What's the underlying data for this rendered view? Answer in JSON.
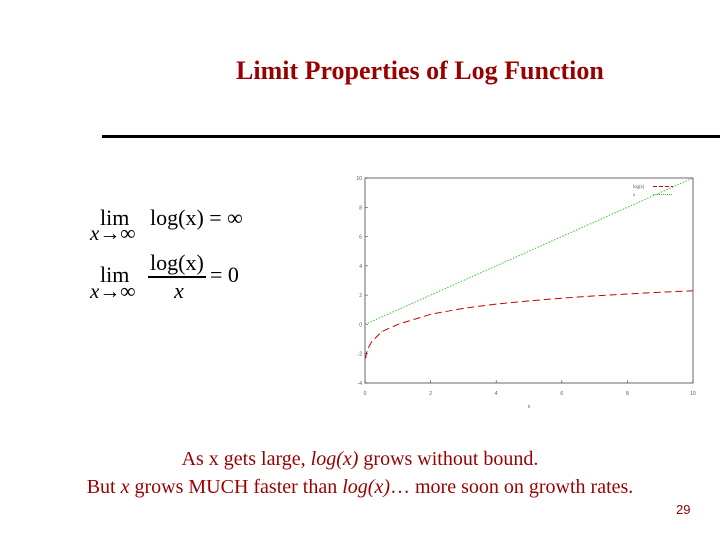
{
  "slide": {
    "title": "Limit Properties of Log Function",
    "page_number": "29"
  },
  "math": {
    "limit1": {
      "lim": "lim",
      "subscript": "x→∞",
      "expression": "log(x) = ∞"
    },
    "limit2": {
      "lim": "lim",
      "subscript": "x→∞",
      "numerator": "log(x)",
      "denominator": "x",
      "result": "= 0"
    }
  },
  "caption": {
    "line1": {
      "part1": "As x gets large, ",
      "part2": "log(x)",
      "part3": " grows without bound."
    },
    "line2": {
      "part1": "But ",
      "part2": "x",
      "part3": " grows MUCH faster than ",
      "part4": "log(x)",
      "part5": "… more soon on growth rates."
    }
  },
  "chart_data": {
    "type": "line",
    "title": "",
    "xlabel": "x",
    "ylabel": "",
    "xlim": [
      0,
      10
    ],
    "ylim": [
      -4,
      10
    ],
    "series": [
      {
        "name": "log(x)",
        "color": "#cc0000",
        "style": "dashed",
        "x": [
          0.02,
          0.05,
          0.1,
          0.2,
          0.5,
          1,
          2,
          3,
          4,
          5,
          6,
          7,
          8,
          9,
          10
        ],
        "y": [
          -2.3,
          -1.9,
          -1.6,
          -1.2,
          -0.5,
          0,
          0.69,
          1.1,
          1.39,
          1.61,
          1.79,
          1.95,
          2.08,
          2.2,
          2.3
        ]
      },
      {
        "name": "x",
        "color": "#33cc33",
        "style": "dotted",
        "x": [
          0,
          10
        ],
        "y": [
          0,
          10
        ]
      }
    ]
  }
}
